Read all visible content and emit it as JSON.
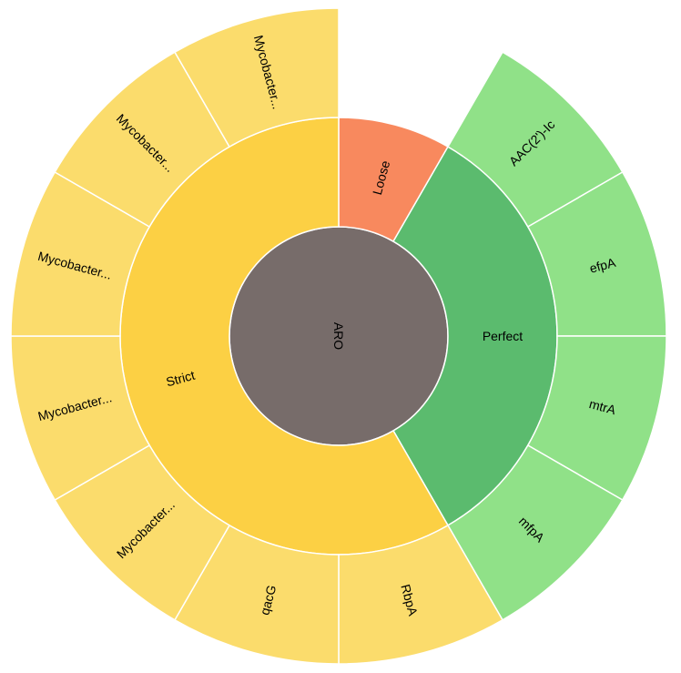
{
  "chart_data": {
    "type": "sunburst",
    "title": "",
    "colors": {
      "root": "#776c6a",
      "Strict": "#fcd044",
      "Strict_leaf": "#fbdc6c",
      "Loose": "#f8895e",
      "Perfect": "#5bbb6e",
      "Perfect_leaf": "#90e188"
    },
    "root": {
      "name": "ARO",
      "children": [
        {
          "name": "Loose",
          "children": [
            {
              "name": "",
              "value": 1
            }
          ]
        },
        {
          "name": "Perfect",
          "children": [
            {
              "name": "AAC(2')-Ic",
              "value": 1
            },
            {
              "name": "efpA",
              "value": 1
            },
            {
              "name": "mtrA",
              "value": 1
            },
            {
              "name": "mfpA",
              "value": 1
            }
          ]
        },
        {
          "name": "Strict",
          "children": [
            {
              "name": "RbpA",
              "value": 1
            },
            {
              "name": "qacG",
              "value": 1
            },
            {
              "name": "Mycobacter...",
              "value": 1
            },
            {
              "name": "Mycobacter...",
              "value": 1
            },
            {
              "name": "Mycobacter...",
              "value": 1
            },
            {
              "name": "Mycobacter...",
              "value": 1
            },
            {
              "name": "Mycobacter...",
              "value": 1
            }
          ]
        }
      ]
    }
  }
}
